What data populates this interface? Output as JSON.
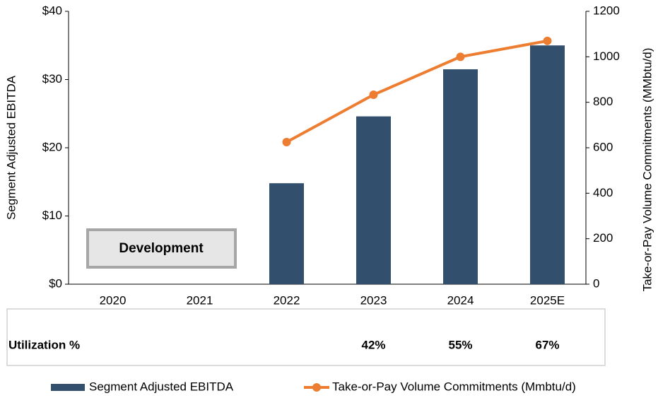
{
  "chart_data": {
    "type": "bar_line",
    "categories": [
      "2020",
      "2021",
      "2022",
      "2023",
      "2024",
      "2025E"
    ],
    "series": [
      {
        "name": "Segment Adjusted EBITDA",
        "color": "#324f6e",
        "type": "bar",
        "values": [
          null,
          null,
          14.8,
          24.6,
          31.5,
          35.0
        ]
      },
      {
        "name": "Take-or-Pay Volume Commitments (Mmbtu/d)",
        "color": "#ed7d31",
        "type": "line",
        "axis": "y2",
        "values": [
          null,
          null,
          625,
          833,
          1000,
          1070
        ]
      }
    ],
    "ylabel": "Segment Adjusted EBITDA",
    "y2label": "Take-or-Pay Volume Commitments (MMbtu/d)",
    "ylim": [
      0,
      40
    ],
    "yticks": [
      {
        "value": 0,
        "label": "$0"
      },
      {
        "value": 10,
        "label": "$10"
      },
      {
        "value": 20,
        "label": "$20"
      },
      {
        "value": 30,
        "label": "$30"
      },
      {
        "value": 40,
        "label": "$40"
      }
    ],
    "y2lim": [
      0,
      1200
    ],
    "y2ticks": [
      0,
      200,
      400,
      600,
      800,
      1000,
      1200
    ],
    "annotation": "Development",
    "utilization": {
      "label": "Utilization %",
      "values": [
        null,
        null,
        null,
        42,
        55,
        67
      ],
      "value_labels": [
        null,
        null,
        null,
        "42%",
        "55%",
        "67%"
      ]
    },
    "grid": false,
    "legend": "bottom"
  }
}
